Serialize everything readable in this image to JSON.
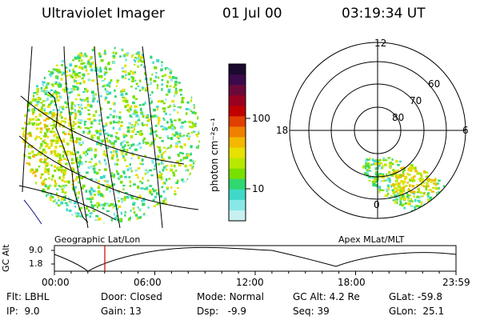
{
  "header": {
    "instrument": "Ultraviolet Imager",
    "date": "01 Jul 00",
    "time": "03:19:34 UT"
  },
  "geo_panel": {
    "caption": "Geographic Lat/Lon"
  },
  "polar_panel": {
    "caption": "Apex MLat/MLT",
    "mlt_labels": [
      "12",
      "18",
      "6",
      "0"
    ],
    "lat_labels": [
      "60",
      "70",
      "80"
    ]
  },
  "colorbar": {
    "unit_label": "photon cm⁻²s⁻¹",
    "ticks": [
      "100",
      "10"
    ],
    "colors": [
      "#1a0a2e",
      "#3a0a4a",
      "#6a0a3a",
      "#9a0020",
      "#c00000",
      "#e04000",
      "#f08000",
      "#f4b800",
      "#e8e000",
      "#b8e800",
      "#78e000",
      "#30d870",
      "#40d8c8",
      "#88e8e8",
      "#c8f0f0"
    ]
  },
  "altitude_plot": {
    "ylabel": "GC Alt",
    "yticks": [
      "9.0",
      "1.8"
    ],
    "xticks": [
      "00:00",
      "06:00",
      "12:00",
      "18:00",
      "23:59"
    ],
    "marker_color": "#cc0000"
  },
  "status": {
    "row1": [
      {
        "key": "Flt:",
        "value": "LBHL"
      },
      {
        "key": "Door:",
        "value": "Closed"
      },
      {
        "key": "Mode:",
        "value": "Normal"
      },
      {
        "key": "GC Alt:",
        "value": "4.2 Re"
      },
      {
        "key": "GLat:",
        "value": "-59.8"
      }
    ],
    "row2": [
      {
        "key": "IP:",
        "value": "9.0"
      },
      {
        "key": "Gain:",
        "value": "13"
      },
      {
        "key": "Dsp:",
        "value": "-9.9"
      },
      {
        "key": "Seq:",
        "value": "39"
      },
      {
        "key": "GLon:",
        "value": "25.1"
      }
    ]
  }
}
